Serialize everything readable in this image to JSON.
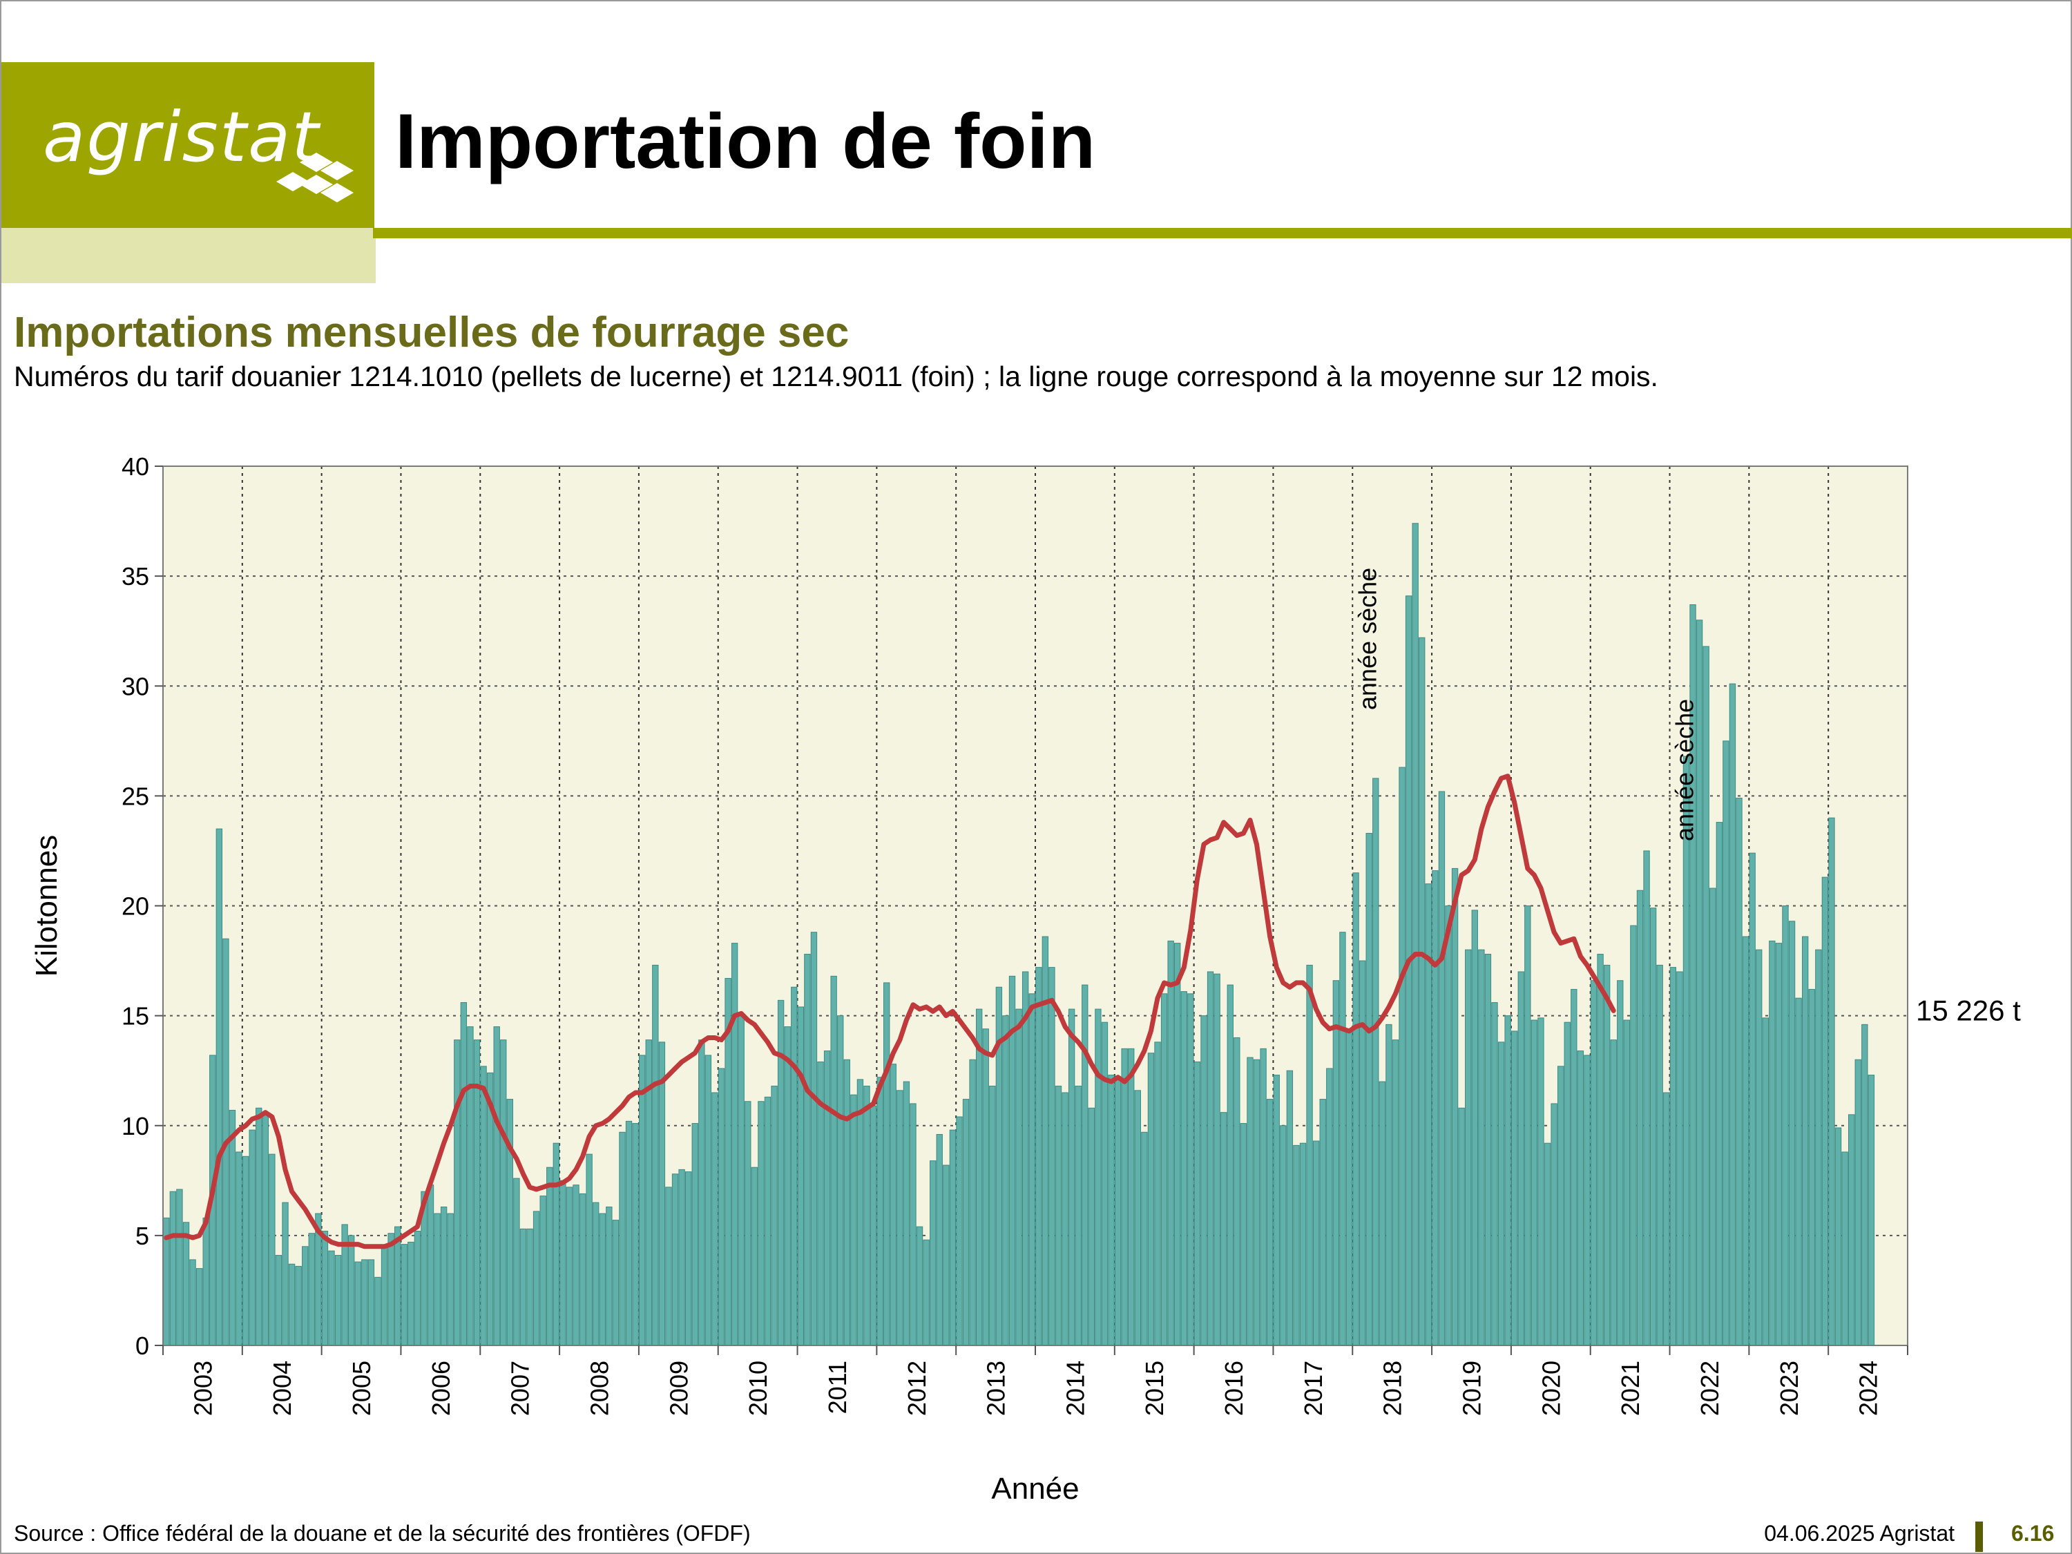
{
  "header": {
    "logo_text": "agristat",
    "title": "Importation de foin"
  },
  "subtitle": "Importations mensuelles de fourrage sec",
  "description": "Numéros du tarif douanier 1214.1010 (pellets de lucerne) et 1214.9011 (foin) ; la ligne rouge correspond à la moyenne sur 12 mois.",
  "footer": {
    "source": "Source : Office fédéral de la douane et de la sécurité des frontières (OFDF)",
    "date": "04.06.2025 Agristat",
    "page": "6.16"
  },
  "colors": {
    "brand": "#9da600",
    "brand_pale": "#e2e5ad",
    "subtitle": "#6a6b1a",
    "plot_background": "#f4f4e1",
    "bar": "#5fb1aa",
    "bar_edge": "#3f8a84",
    "moving_average": "#c0393b"
  },
  "chart_data": {
    "type": "bar",
    "xlabel": "Année",
    "ylabel": "Kilotonnes",
    "ylim": [
      0,
      40
    ],
    "yticks": [
      0,
      5,
      10,
      15,
      20,
      25,
      30,
      35,
      40
    ],
    "grid": true,
    "years": [
      "2003",
      "2004",
      "2005",
      "2006",
      "2007",
      "2008",
      "2009",
      "2010",
      "2011",
      "2012",
      "2013",
      "2014",
      "2015",
      "2016",
      "2017",
      "2018",
      "2019",
      "2020",
      "2021",
      "2022",
      "2023",
      "2024"
    ],
    "monthly_values": {
      "2003": [
        5.8,
        7.0,
        7.1,
        5.6,
        3.9,
        3.5,
        5.8,
        13.2,
        23.5,
        18.5,
        10.7,
        8.8
      ],
      "2004": [
        8.6,
        9.8,
        10.8,
        10.5,
        8.7,
        4.1,
        6.5,
        3.7,
        3.6,
        4.5,
        5.1,
        6.0
      ],
      "2005": [
        5.2,
        4.3,
        4.1,
        5.5,
        5.0,
        3.8,
        3.9,
        3.9,
        3.1,
        4.5,
        5.1,
        5.4
      ],
      "2006": [
        4.6,
        4.7,
        5.2,
        7.0,
        7.3,
        6.0,
        6.3,
        6.0,
        13.9,
        15.6,
        14.5,
        13.9
      ],
      "2007": [
        12.7,
        12.4,
        14.5,
        13.9,
        11.2,
        7.6,
        5.3,
        5.3,
        6.1,
        6.8,
        8.1,
        9.2
      ],
      "2008": [
        7.5,
        7.2,
        7.3,
        6.9,
        8.7,
        6.5,
        6.0,
        6.3,
        5.7,
        9.7,
        10.2,
        10.1
      ],
      "2009": [
        13.2,
        13.9,
        17.3,
        13.8,
        7.2,
        7.8,
        8.0,
        7.9,
        10.1,
        13.9,
        13.2,
        11.5
      ],
      "2010": [
        12.6,
        16.7,
        18.3,
        15.0,
        11.1,
        8.1,
        11.1,
        11.3,
        11.8,
        15.7,
        14.5,
        16.3
      ],
      "2011": [
        15.4,
        17.8,
        18.8,
        12.9,
        13.4,
        16.8,
        15.0,
        13.0,
        11.4,
        12.1,
        11.8,
        10.9
      ],
      "2012": [
        12.2,
        16.5,
        12.8,
        11.6,
        12.0,
        11.0,
        5.4,
        4.8,
        8.4,
        9.6,
        8.2,
        9.8
      ],
      "2013": [
        10.4,
        11.2,
        13.0,
        15.3,
        14.4,
        11.8,
        16.3,
        15.0,
        16.8,
        15.3,
        17.0,
        16.0
      ],
      "2014": [
        17.2,
        18.6,
        17.2,
        11.8,
        11.5,
        15.3,
        11.8,
        16.4,
        10.8,
        15.3,
        14.7,
        12.3
      ],
      "2015": [
        12.2,
        13.5,
        13.5,
        11.6,
        9.7,
        13.3,
        13.8,
        16.0,
        18.4,
        18.3,
        16.1,
        16.0
      ],
      "2016": [
        12.9,
        15.0,
        17.0,
        16.9,
        10.6,
        16.4,
        14.0,
        10.1,
        13.1,
        13.0,
        13.5,
        11.2
      ],
      "2017": [
        12.3,
        10.0,
        12.5,
        9.1,
        9.2,
        17.3,
        9.3,
        11.2,
        12.6,
        16.6,
        18.8,
        14.3
      ],
      "2018": [
        21.5,
        17.5,
        23.3,
        25.8,
        12.0,
        14.6,
        13.9,
        26.3,
        34.1,
        37.4,
        32.2,
        21.0
      ],
      "2019": [
        21.6,
        25.2,
        20.0,
        21.7,
        10.8,
        18.0,
        19.8,
        18.0,
        17.8,
        15.6,
        13.8,
        15.0
      ],
      "2020": [
        14.3,
        17.0,
        20.0,
        14.8,
        14.9,
        9.2,
        11.0,
        12.7,
        14.7,
        16.2,
        13.4,
        13.2
      ],
      "2021": [
        16.6,
        17.8,
        17.3,
        13.9,
        16.6,
        14.8,
        19.1,
        20.7,
        22.5,
        19.9,
        17.3,
        11.5
      ],
      "2022": [
        17.2,
        17.0,
        26.8,
        33.7,
        33.0,
        31.8,
        20.8,
        23.8,
        27.5,
        30.1,
        24.9,
        18.6
      ],
      "2023": [
        22.4,
        18.0,
        14.9,
        18.4,
        18.3,
        20.0,
        19.3,
        15.8,
        18.6,
        16.2,
        18.0,
        21.3
      ],
      "2024": [
        24.0,
        9.9,
        8.8,
        10.5,
        13.0,
        14.6,
        12.3
      ]
    },
    "moving_average": {
      "name": "moyenne sur 12 mois",
      "values": [
        4.9,
        5.0,
        5.0,
        5.0,
        4.9,
        5.0,
        5.6,
        7.0,
        8.6,
        9.2,
        9.5,
        9.8,
        10.0,
        10.3,
        10.4,
        10.6,
        10.4,
        9.5,
        8.0,
        7.0,
        6.6,
        6.2,
        5.7,
        5.2,
        4.9,
        4.7,
        4.6,
        4.6,
        4.6,
        4.6,
        4.5,
        4.5,
        4.5,
        4.5,
        4.6,
        4.8,
        5.0,
        5.2,
        5.4,
        6.5,
        7.4,
        8.3,
        9.2,
        10.0,
        10.9,
        11.6,
        11.8,
        11.8,
        11.7,
        11.0,
        10.2,
        9.6,
        9.0,
        8.5,
        7.8,
        7.2,
        7.1,
        7.2,
        7.3,
        7.3,
        7.4,
        7.6,
        8.0,
        8.6,
        9.5,
        10.0,
        10.1,
        10.3,
        10.6,
        10.9,
        11.3,
        11.5,
        11.5,
        11.7,
        11.9,
        12.0,
        12.3,
        12.6,
        12.9,
        13.1,
        13.3,
        13.8,
        14.0,
        14.0,
        13.9,
        14.3,
        15.0,
        15.1,
        14.8,
        14.6,
        14.2,
        13.8,
        13.3,
        13.2,
        13.0,
        12.7,
        12.3,
        11.6,
        11.3,
        11.0,
        10.8,
        10.6,
        10.4,
        10.3,
        10.5,
        10.6,
        10.8,
        11.0,
        11.8,
        12.5,
        13.3,
        13.9,
        14.8,
        15.5,
        15.3,
        15.4,
        15.2,
        15.4,
        15.0,
        15.2,
        14.8,
        14.4,
        14.0,
        13.5,
        13.3,
        13.2,
        13.8,
        14.0,
        14.3,
        14.5,
        14.9,
        15.4,
        15.5,
        15.6,
        15.7,
        15.2,
        14.5,
        14.1,
        13.8,
        13.4,
        12.8,
        12.3,
        12.1,
        12.0,
        12.2,
        12.0,
        12.3,
        12.8,
        13.4,
        14.3,
        15.8,
        16.5,
        16.4,
        16.5,
        17.2,
        18.9,
        21.2,
        22.8,
        23.0,
        23.1,
        23.8,
        23.5,
        23.2,
        23.3,
        23.9,
        22.8,
        20.7,
        18.6,
        17.2,
        16.5,
        16.3,
        16.5,
        16.5,
        16.2,
        15.3,
        14.7,
        14.4,
        14.5,
        14.4,
        14.3,
        14.5,
        14.6,
        14.3,
        14.5,
        14.9,
        15.4,
        16.0,
        16.8,
        17.5,
        17.8,
        17.8,
        17.6,
        17.3,
        17.6,
        18.9,
        20.2,
        21.4,
        21.6,
        22.1,
        23.5,
        24.5,
        25.2,
        25.8,
        25.9,
        24.7,
        23.2,
        21.7,
        21.4,
        20.8,
        19.8,
        18.8,
        18.3,
        18.4,
        18.5,
        17.7,
        17.3,
        16.8,
        16.3,
        15.8,
        15.226
      ]
    },
    "annotations": [
      {
        "text": "année sèche",
        "year": "2018"
      },
      {
        "text": "année sèche",
        "year": "2022"
      },
      {
        "text": "15 226 t",
        "target": "last moving average value"
      }
    ]
  }
}
